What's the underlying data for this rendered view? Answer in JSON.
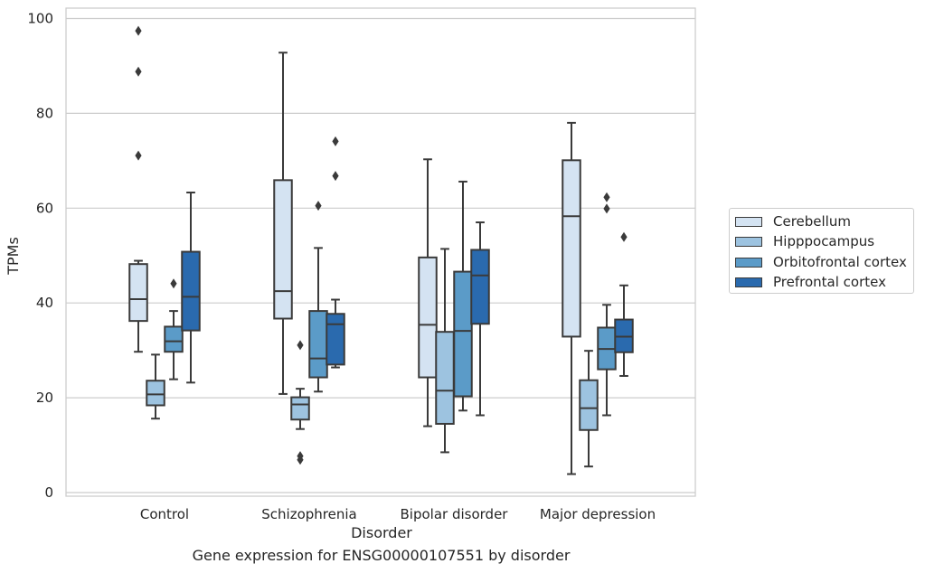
{
  "chart_data": {
    "type": "box",
    "title": "Gene expression for ENSG00000107551 by disorder",
    "xlabel": "Disorder",
    "ylabel": "TPMs",
    "ylim": [
      0,
      100
    ],
    "yticks": [
      0,
      20,
      40,
      60,
      80,
      100
    ],
    "grid": true,
    "legend_position": "right",
    "categories": [
      "Control",
      "Schizophrenia",
      "Bipolar disorder",
      "Major depression"
    ],
    "series": [
      {
        "name": "Cerebellum",
        "color": "#d4e3f2",
        "boxes": [
          {
            "whislo": 29.7,
            "q1": 36.2,
            "med": 40.8,
            "q3": 48.2,
            "whishi": 48.9,
            "fliers": [
              97.4,
              88.8,
              71.1
            ]
          },
          {
            "whislo": 20.8,
            "q1": 36.7,
            "med": 42.5,
            "q3": 65.9,
            "whishi": 92.8,
            "fliers": []
          },
          {
            "whislo": 14.0,
            "q1": 24.3,
            "med": 35.4,
            "q3": 49.6,
            "whishi": 70.3,
            "fliers": []
          },
          {
            "whislo": 3.9,
            "q1": 32.9,
            "med": 58.3,
            "q3": 70.1,
            "whishi": 78.0,
            "fliers": []
          }
        ]
      },
      {
        "name": "Hipppocampus",
        "color": "#9dc3e0",
        "boxes": [
          {
            "whislo": 15.6,
            "q1": 18.4,
            "med": 20.7,
            "q3": 23.6,
            "whishi": 29.1,
            "fliers": []
          },
          {
            "whislo": 13.4,
            "q1": 15.4,
            "med": 18.6,
            "q3": 20.1,
            "whishi": 21.9,
            "fliers": [
              31.1,
              7.7,
              6.9
            ]
          },
          {
            "whislo": 8.5,
            "q1": 14.5,
            "med": 21.5,
            "q3": 33.9,
            "whishi": 51.4,
            "fliers": []
          },
          {
            "whislo": 5.5,
            "q1": 13.2,
            "med": 17.8,
            "q3": 23.7,
            "whishi": 29.9,
            "fliers": []
          }
        ]
      },
      {
        "name": "Orbitofrontal cortex",
        "color": "#5b9bc8",
        "boxes": [
          {
            "whislo": 23.9,
            "q1": 29.7,
            "med": 31.9,
            "q3": 35.0,
            "whishi": 38.3,
            "fliers": [
              44.1
            ]
          },
          {
            "whislo": 21.3,
            "q1": 24.3,
            "med": 28.3,
            "q3": 38.3,
            "whishi": 51.6,
            "fliers": [
              60.5
            ]
          },
          {
            "whislo": 17.3,
            "q1": 20.3,
            "med": 34.1,
            "q3": 46.6,
            "whishi": 65.6,
            "fliers": []
          },
          {
            "whislo": 16.3,
            "q1": 26.0,
            "med": 30.3,
            "q3": 34.8,
            "whishi": 39.6,
            "fliers": [
              62.3,
              59.9
            ]
          }
        ]
      },
      {
        "name": "Prefrontal cortex",
        "color": "#2a6aae",
        "boxes": [
          {
            "whislo": 23.2,
            "q1": 34.2,
            "med": 41.3,
            "q3": 50.8,
            "whishi": 63.3,
            "fliers": []
          },
          {
            "whislo": 26.4,
            "q1": 27.0,
            "med": 35.5,
            "q3": 37.7,
            "whishi": 40.7,
            "fliers": [
              74.1,
              66.8
            ]
          },
          {
            "whislo": 16.3,
            "q1": 35.6,
            "med": 45.8,
            "q3": 51.2,
            "whishi": 57.0,
            "fliers": []
          },
          {
            "whislo": 24.6,
            "q1": 29.6,
            "med": 32.9,
            "q3": 36.5,
            "whishi": 43.7,
            "fliers": [
              53.9
            ]
          }
        ]
      }
    ]
  }
}
